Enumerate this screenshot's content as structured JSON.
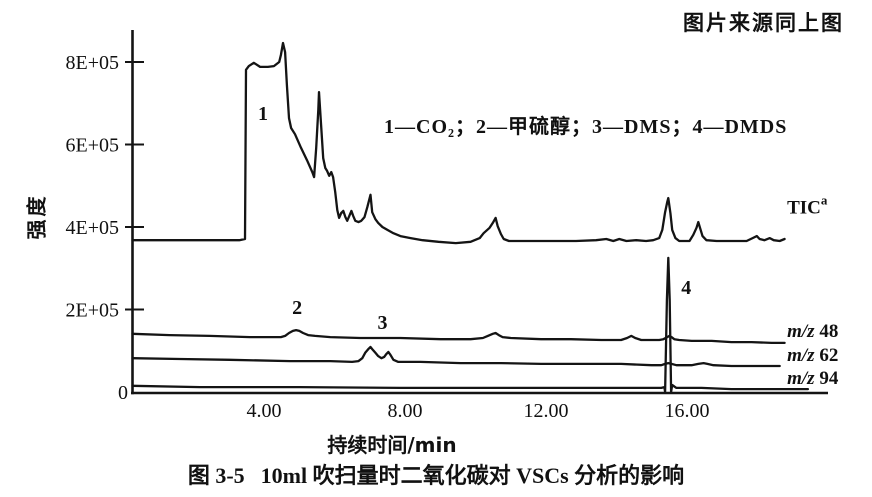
{
  "header": {
    "source_note": "图片来源同上图"
  },
  "chart_data": {
    "type": "line",
    "title_label": "图 3-5",
    "title": "10ml 吹扫量时二氧化碳对 VSCs 分析的影响",
    "xlabel": "持续时间/min",
    "ylabel": "强度",
    "legend": "1—CO₂；2—甲硫醇；3—DMS；4—DMDS",
    "legend_position": "inside-top",
    "grid": false,
    "xlim": [
      0,
      20
    ],
    "ylim": [
      0,
      900000
    ],
    "intensity_scale": 1000,
    "x_ticks": [
      {
        "label": "4.00",
        "value": 4
      },
      {
        "label": "8.00",
        "value": 8
      },
      {
        "label": "12.00",
        "value": 12
      },
      {
        "label": "16.00",
        "value": 16
      }
    ],
    "y_ticks": [
      {
        "label": "8E+05",
        "value": 800000
      },
      {
        "label": "6E+05",
        "value": 600000
      },
      {
        "label": "4E+05",
        "value": 400000
      },
      {
        "label": "2E+05",
        "value": 200000
      },
      {
        "label": "0",
        "value": 0
      }
    ],
    "peak_labels": [
      {
        "text": "1",
        "t": 3.97,
        "i": 676,
        "compound": "CO₂"
      },
      {
        "text": "2",
        "t": 4.94,
        "i": 206,
        "compound": "甲硫醇"
      },
      {
        "text": "3",
        "t": 7.36,
        "i": 170,
        "compound": "DMS"
      },
      {
        "text": "4",
        "t": 15.98,
        "i": 255,
        "compound": "DMDS"
      }
    ],
    "series": [
      {
        "id": "tic",
        "name": "TIC",
        "label_main": "TIC",
        "label_sup": "a",
        "label_at": {
          "t": 18.84,
          "i": 447
        },
        "points": [
          [
            0.27,
            368
          ],
          [
            3.3,
            368
          ],
          [
            3.46,
            371
          ],
          [
            3.49,
            781
          ],
          [
            3.57,
            790
          ],
          [
            3.71,
            798
          ],
          [
            3.89,
            788
          ],
          [
            4.11,
            788
          ],
          [
            4.28,
            790
          ],
          [
            4.43,
            800
          ],
          [
            4.48,
            817
          ],
          [
            4.54,
            846
          ],
          [
            4.6,
            824
          ],
          [
            4.65,
            744
          ],
          [
            4.71,
            664
          ],
          [
            4.77,
            640
          ],
          [
            4.88,
            625
          ],
          [
            5.05,
            592
          ],
          [
            5.22,
            562
          ],
          [
            5.37,
            533
          ],
          [
            5.42,
            521
          ],
          [
            5.48,
            592
          ],
          [
            5.54,
            684
          ],
          [
            5.56,
            727
          ],
          [
            5.62,
            647
          ],
          [
            5.68,
            567
          ],
          [
            5.74,
            543
          ],
          [
            5.79,
            536
          ],
          [
            5.85,
            524
          ],
          [
            5.91,
            533
          ],
          [
            5.96,
            521
          ],
          [
            6.02,
            485
          ],
          [
            6.08,
            441
          ],
          [
            6.13,
            422
          ],
          [
            6.19,
            434
          ],
          [
            6.25,
            439
          ],
          [
            6.31,
            424
          ],
          [
            6.36,
            415
          ],
          [
            6.42,
            427
          ],
          [
            6.48,
            439
          ],
          [
            6.53,
            427
          ],
          [
            6.59,
            415
          ],
          [
            6.68,
            412
          ],
          [
            6.76,
            415
          ],
          [
            6.85,
            424
          ],
          [
            6.93,
            448
          ],
          [
            7.02,
            478
          ],
          [
            7.07,
            436
          ],
          [
            7.16,
            419
          ],
          [
            7.24,
            410
          ],
          [
            7.36,
            400
          ],
          [
            7.5,
            393
          ],
          [
            7.67,
            385
          ],
          [
            7.87,
            378
          ],
          [
            8.16,
            373
          ],
          [
            8.5,
            368
          ],
          [
            8.95,
            364
          ],
          [
            9.44,
            361
          ],
          [
            9.86,
            364
          ],
          [
            10.12,
            373
          ],
          [
            10.23,
            385
          ],
          [
            10.4,
            398
          ],
          [
            10.49,
            410
          ],
          [
            10.57,
            422
          ],
          [
            10.63,
            402
          ],
          [
            10.72,
            383
          ],
          [
            10.8,
            371
          ],
          [
            10.95,
            366
          ],
          [
            12,
            366
          ],
          [
            12.85,
            366
          ],
          [
            13.42,
            368
          ],
          [
            13.71,
            371
          ],
          [
            13.91,
            366
          ],
          [
            14.08,
            371
          ],
          [
            14.28,
            366
          ],
          [
            14.56,
            368
          ],
          [
            14.84,
            366
          ],
          [
            15.04,
            368
          ],
          [
            15.21,
            373
          ],
          [
            15.3,
            393
          ],
          [
            15.38,
            436
          ],
          [
            15.44,
            461
          ],
          [
            15.47,
            470
          ],
          [
            15.53,
            434
          ],
          [
            15.58,
            393
          ],
          [
            15.67,
            373
          ],
          [
            15.78,
            366
          ],
          [
            16.07,
            366
          ],
          [
            16.18,
            381
          ],
          [
            16.27,
            398
          ],
          [
            16.32,
            412
          ],
          [
            16.38,
            395
          ],
          [
            16.44,
            378
          ],
          [
            16.55,
            368
          ],
          [
            16.84,
            366
          ],
          [
            17.26,
            366
          ],
          [
            17.69,
            366
          ],
          [
            17.86,
            373
          ],
          [
            17.98,
            378
          ],
          [
            18.06,
            371
          ],
          [
            18.2,
            368
          ],
          [
            18.35,
            373
          ],
          [
            18.46,
            368
          ],
          [
            18.63,
            366
          ],
          [
            18.77,
            371
          ]
        ]
      },
      {
        "id": "mz48",
        "name": "m/z 48",
        "label_prefix": "m/z",
        "label_value": "48",
        "label_at": {
          "t": 18.84,
          "i": 148
        },
        "points": [
          [
            0.27,
            141
          ],
          [
            1.32,
            138
          ],
          [
            2.46,
            136
          ],
          [
            3.6,
            133
          ],
          [
            4.48,
            133
          ],
          [
            4.6,
            136
          ],
          [
            4.71,
            143
          ],
          [
            4.82,
            148
          ],
          [
            4.91,
            150
          ],
          [
            5,
            148
          ],
          [
            5.11,
            143
          ],
          [
            5.25,
            138
          ],
          [
            5.45,
            136
          ],
          [
            5.88,
            133
          ],
          [
            6.73,
            131
          ],
          [
            7.87,
            131
          ],
          [
            9.01,
            128
          ],
          [
            9.86,
            128
          ],
          [
            10.21,
            131
          ],
          [
            10.35,
            136
          ],
          [
            10.49,
            141
          ],
          [
            10.57,
            143
          ],
          [
            10.66,
            138
          ],
          [
            10.77,
            133
          ],
          [
            11,
            131
          ],
          [
            11.86,
            128
          ],
          [
            12.71,
            128
          ],
          [
            13.57,
            126
          ],
          [
            14.13,
            126
          ],
          [
            14.3,
            131
          ],
          [
            14.42,
            136
          ],
          [
            14.53,
            131
          ],
          [
            14.7,
            126
          ],
          [
            14.99,
            126
          ],
          [
            15.21,
            126
          ],
          [
            15.33,
            128
          ],
          [
            15.44,
            133
          ],
          [
            15.5,
            136
          ],
          [
            15.56,
            133
          ],
          [
            15.64,
            128
          ],
          [
            15.78,
            126
          ],
          [
            16.13,
            124
          ],
          [
            16.7,
            124
          ],
          [
            17.26,
            121
          ],
          [
            17.83,
            121
          ],
          [
            18.4,
            119
          ],
          [
            18.77,
            119
          ]
        ]
      },
      {
        "id": "mz62",
        "name": "m/z 62",
        "label_prefix": "m/z",
        "label_value": "62",
        "label_at": {
          "t": 18.84,
          "i": 90
        },
        "points": [
          [
            0.27,
            82
          ],
          [
            1.61,
            80
          ],
          [
            3.03,
            78
          ],
          [
            4.74,
            75
          ],
          [
            5.88,
            75
          ],
          [
            6.5,
            73
          ],
          [
            6.68,
            75
          ],
          [
            6.79,
            82
          ],
          [
            6.87,
            95
          ],
          [
            6.96,
            104
          ],
          [
            7.02,
            109
          ],
          [
            7.07,
            104
          ],
          [
            7.16,
            95
          ],
          [
            7.24,
            87
          ],
          [
            7.33,
            82
          ],
          [
            7.41,
            85
          ],
          [
            7.47,
            92
          ],
          [
            7.53,
            97
          ],
          [
            7.59,
            90
          ],
          [
            7.67,
            78
          ],
          [
            7.81,
            73
          ],
          [
            8.44,
            73
          ],
          [
            9.58,
            70
          ],
          [
            10.72,
            70
          ],
          [
            11.86,
            68
          ],
          [
            12.99,
            68
          ],
          [
            14.13,
            68
          ],
          [
            14.99,
            65
          ],
          [
            15.27,
            65
          ],
          [
            15.38,
            68
          ],
          [
            15.47,
            70
          ],
          [
            15.56,
            68
          ],
          [
            15.7,
            65
          ],
          [
            16.13,
            65
          ],
          [
            16.32,
            68
          ],
          [
            16.47,
            70
          ],
          [
            16.58,
            68
          ],
          [
            16.75,
            65
          ],
          [
            17.26,
            63
          ],
          [
            17.83,
            63
          ],
          [
            18.4,
            63
          ],
          [
            18.63,
            63
          ]
        ]
      },
      {
        "id": "mz94",
        "name": "m/z 94",
        "label_prefix": "m/z",
        "label_value": "94",
        "label_at": {
          "t": 18.84,
          "i": 34
        },
        "points": [
          [
            0.27,
            15
          ],
          [
            2.18,
            12
          ],
          [
            5.02,
            12
          ],
          [
            7.87,
            10
          ],
          [
            10.72,
            10
          ],
          [
            13.57,
            10
          ],
          [
            14.7,
            10
          ],
          [
            15.27,
            10
          ],
          [
            15.36,
            12
          ],
          [
            15.38,
            0
          ],
          [
            15.43,
            223
          ],
          [
            15.47,
            325
          ],
          [
            15.51,
            223
          ],
          [
            15.55,
            0
          ],
          [
            15.58,
            17
          ],
          [
            15.7,
            10
          ],
          [
            16.41,
            10
          ],
          [
            17.26,
            7
          ],
          [
            18.12,
            7
          ],
          [
            18.97,
            7
          ],
          [
            19.43,
            7
          ]
        ]
      }
    ]
  }
}
